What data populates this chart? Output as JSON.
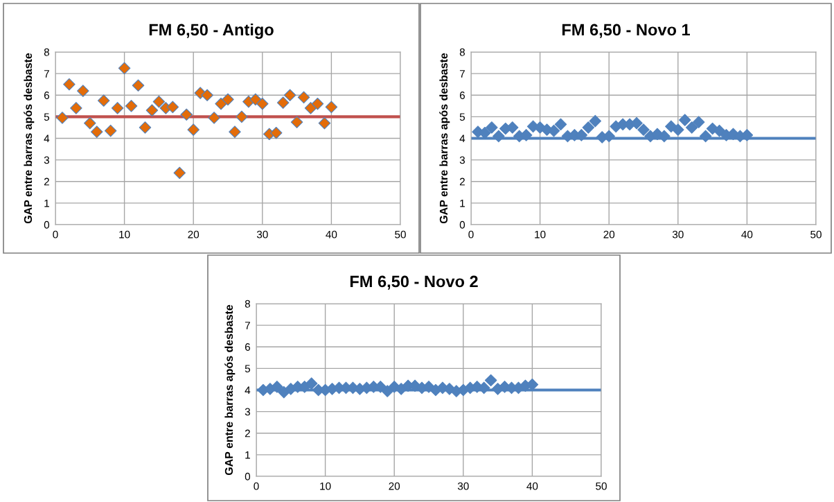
{
  "chart_data": [
    {
      "type": "scatter",
      "title": "FM 6,50 - Antigo",
      "ylabel": "GAP entre barras após desbaste",
      "xlim": [
        0,
        50
      ],
      "xticks": [
        0,
        10,
        20,
        30,
        40,
        50
      ],
      "ylim": [
        0,
        8
      ],
      "yticks": [
        0,
        1,
        2,
        3,
        4,
        5,
        6,
        7,
        8
      ],
      "grid": true,
      "marker": "diamond",
      "series": [
        {
          "color": "#e36c09",
          "x": [
            1,
            2,
            3,
            4,
            5,
            6,
            7,
            8,
            9,
            10,
            11,
            12,
            13,
            14,
            15,
            16,
            17,
            18,
            19,
            20,
            21,
            22,
            23,
            24,
            25,
            26,
            27,
            28,
            29,
            30,
            31,
            32,
            33,
            34,
            35,
            36,
            37,
            38,
            39,
            40
          ],
          "values": [
            4.95,
            6.5,
            5.4,
            6.2,
            4.7,
            4.3,
            5.75,
            4.35,
            5.4,
            7.25,
            5.5,
            6.45,
            4.5,
            5.3,
            5.7,
            5.4,
            5.45,
            2.4,
            5.1,
            4.4,
            6.1,
            6.0,
            4.95,
            5.6,
            5.8,
            4.3,
            5.0,
            5.7,
            5.8,
            5.6,
            4.2,
            4.25,
            5.65,
            6.0,
            4.75,
            5.9,
            5.4,
            5.6,
            4.7,
            5.45
          ]
        }
      ],
      "ref_lines": [
        {
          "axis": "y",
          "value": 5,
          "color": "#c0504d"
        }
      ]
    },
    {
      "type": "scatter",
      "title": "FM 6,50 - Novo 1",
      "ylabel": "GAP entre barras após desbaste",
      "xlim": [
        0,
        50
      ],
      "xticks": [
        0,
        10,
        20,
        30,
        40,
        50
      ],
      "ylim": [
        0,
        8
      ],
      "yticks": [
        0,
        1,
        2,
        3,
        4,
        5,
        6,
        7,
        8
      ],
      "grid": true,
      "marker": "diamond",
      "series": [
        {
          "color": "#4f81bd",
          "x": [
            1,
            2,
            3,
            4,
            5,
            6,
            7,
            8,
            9,
            10,
            11,
            12,
            13,
            14,
            15,
            16,
            17,
            18,
            19,
            20,
            21,
            22,
            23,
            24,
            25,
            26,
            27,
            28,
            29,
            30,
            31,
            32,
            33,
            34,
            35,
            36,
            37,
            38,
            39,
            40
          ],
          "values": [
            4.3,
            4.25,
            4.5,
            4.1,
            4.45,
            4.5,
            4.1,
            4.15,
            4.55,
            4.5,
            4.4,
            4.35,
            4.65,
            4.1,
            4.15,
            4.15,
            4.5,
            4.8,
            4.05,
            4.1,
            4.55,
            4.65,
            4.65,
            4.7,
            4.4,
            4.1,
            4.2,
            4.1,
            4.55,
            4.4,
            4.85,
            4.5,
            4.75,
            4.1,
            4.45,
            4.35,
            4.15,
            4.2,
            4.1,
            4.15
          ]
        }
      ],
      "ref_lines": [
        {
          "axis": "y",
          "value": 4,
          "color": "#4f81bd"
        }
      ]
    },
    {
      "type": "scatter",
      "title": "FM 6,50 - Novo 2",
      "ylabel": "GAP entre barras após desbaste",
      "xlim": [
        0,
        50
      ],
      "xticks": [
        0,
        10,
        20,
        30,
        40,
        50
      ],
      "ylim": [
        0,
        8
      ],
      "yticks": [
        0,
        1,
        2,
        3,
        4,
        5,
        6,
        7,
        8
      ],
      "grid": true,
      "marker": "diamond",
      "series": [
        {
          "color": "#4f81bd",
          "x": [
            1,
            2,
            3,
            4,
            5,
            6,
            7,
            8,
            9,
            10,
            11,
            12,
            13,
            14,
            15,
            16,
            17,
            18,
            19,
            20,
            21,
            22,
            23,
            24,
            25,
            26,
            27,
            28,
            29,
            30,
            31,
            32,
            33,
            34,
            35,
            36,
            37,
            38,
            39,
            40
          ],
          "values": [
            4.0,
            4.05,
            4.15,
            3.9,
            4.05,
            4.15,
            4.15,
            4.3,
            4.0,
            4.0,
            4.05,
            4.1,
            4.1,
            4.1,
            4.05,
            4.1,
            4.15,
            4.15,
            3.95,
            4.15,
            4.05,
            4.2,
            4.2,
            4.1,
            4.15,
            4.0,
            4.1,
            4.05,
            3.95,
            4.0,
            4.1,
            4.15,
            4.1,
            4.45,
            4.05,
            4.15,
            4.1,
            4.1,
            4.2,
            4.25
          ]
        }
      ],
      "ref_lines": [
        {
          "axis": "y",
          "value": 4,
          "color": "#4f81bd"
        }
      ]
    }
  ]
}
